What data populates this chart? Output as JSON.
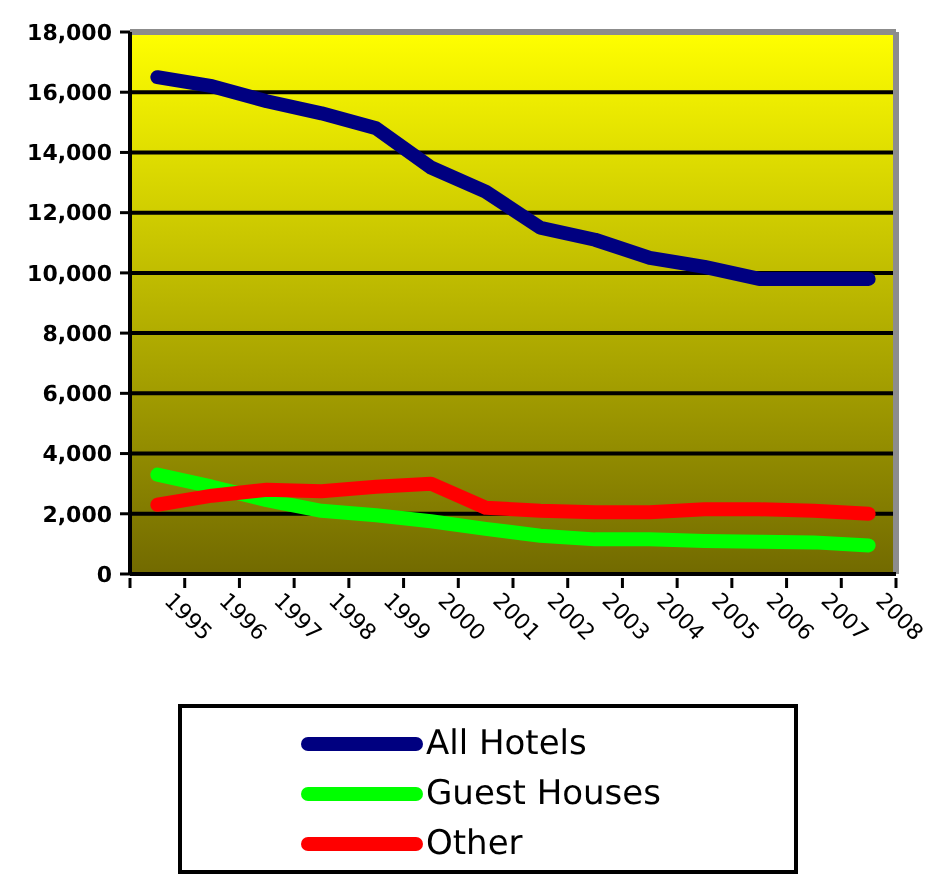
{
  "chart_data": {
    "type": "line",
    "categories": [
      "1995",
      "1996",
      "1997",
      "1998",
      "1999",
      "2000",
      "2001",
      "2002",
      "2003",
      "2004",
      "2005",
      "2006",
      "2007",
      "2008"
    ],
    "series": [
      {
        "name": "All Hotels",
        "color": "#000080",
        "values": [
          16500,
          16200,
          15700,
          15300,
          14800,
          13500,
          12700,
          11500,
          11100,
          10500,
          10200,
          9800,
          9800,
          9800
        ]
      },
      {
        "name": "Guest Houses",
        "color": "#00ff00",
        "values": [
          3300,
          2900,
          2450,
          2100,
          1950,
          1750,
          1500,
          1270,
          1150,
          1150,
          1100,
          1070,
          1050,
          950
        ]
      },
      {
        "name": "Other",
        "color": "#ff0000",
        "values": [
          2300,
          2600,
          2800,
          2750,
          2900,
          3000,
          2200,
          2100,
          2050,
          2050,
          2150,
          2150,
          2100,
          2000
        ]
      }
    ],
    "ylim": [
      0,
      18000
    ],
    "yticks": [
      0,
      {
        "value": 2000,
        "label": "2,000"
      },
      {
        "value": 4000,
        "label": "4,000"
      },
      {
        "value": 6000,
        "label": "6,000"
      },
      {
        "value": 8000,
        "label": "8,000"
      },
      {
        "value": 10000,
        "label": "10,000"
      },
      {
        "value": 12000,
        "label": "12,000"
      },
      {
        "value": 14000,
        "label": "14,000"
      },
      {
        "value": 16000,
        "label": "16,000"
      },
      {
        "value": 18000,
        "label": "18,000"
      }
    ],
    "grid": "y",
    "legend": "bottom",
    "marker": "none",
    "line_style": "solid"
  }
}
